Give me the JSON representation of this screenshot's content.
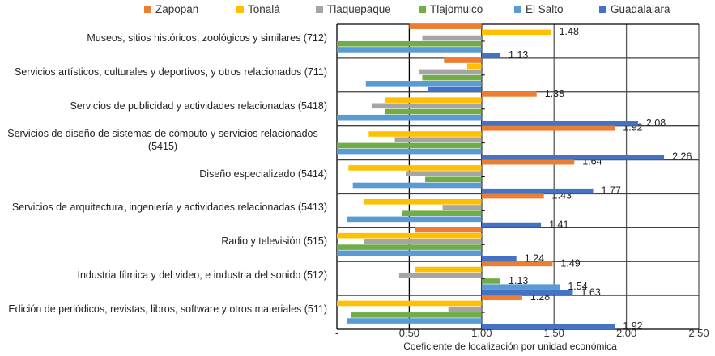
{
  "chart_data": {
    "type": "bar",
    "orientation": "horizontal",
    "title": "",
    "xlabel": "Coeficiente de localización por unidad económica",
    "ylabel": "",
    "baseline": 1.0,
    "xlim": [
      0,
      2.5
    ],
    "xticks": [
      0,
      0.5,
      1.0,
      1.5,
      2.0,
      2.5
    ],
    "xtick_labels": [
      "-",
      "0.50",
      "1.00",
      "1.50",
      "2.00",
      "2.50"
    ],
    "grid": true,
    "legend_position": "top",
    "categories": [
      "Museos, sitios históricos, zoológicos y similares (712)",
      "Servicios artísticos, culturales y deportivos, y otros relacionados (711)",
      "Servicios de publicidad y actividades relacionadas (5418)",
      "Servicios de diseño de sistemas de cómputo y servicios relacionados (5415)",
      "Diseño especializado (5414)",
      "Servicios de arquitectura, ingeniería y actividades relacionadas (5413)",
      "Radio y televisión (515)",
      "Industria fílmica y del video, e industria del sonido (512)",
      "Edición de periódicos, revistas, libros, software y otros materiales (511)"
    ],
    "category_display": [
      [
        "Museos, sitios históricos, zoológicos y similares (712)"
      ],
      [
        "Servicios artísticos, culturales y deportivos, y otros relacionados (711)"
      ],
      [
        "Servicios de publicidad y actividades relacionadas (5418)"
      ],
      [
        "Servicios de diseño de sistemas de cómputo y servicios relacionados",
        "(5415)"
      ],
      [
        "Diseño especializado (5414)"
      ],
      [
        "Servicios de arquitectura, ingeniería y actividades relacionadas (5413)"
      ],
      [
        "Radio y televisión (515)"
      ],
      [
        "Industria fílmica y del video, e industria del sonido (512)"
      ],
      [
        "Edición de periódicos, revistas, libros, software y otros materiales (511)"
      ]
    ],
    "series": [
      {
        "name": "Zapopan",
        "color": "#ED7D31",
        "values": [
          0.5,
          0.74,
          1.38,
          1.92,
          1.64,
          1.43,
          0.54,
          1.49,
          1.28
        ],
        "labels": [
          null,
          null,
          "1.38",
          "1.92",
          "1.64",
          "1.43",
          null,
          "1.49",
          "1.28"
        ]
      },
      {
        "name": "Tonalá",
        "color": "#FFC000",
        "values": [
          1.48,
          0.9,
          0.33,
          0.22,
          0.08,
          0.19,
          0.0,
          0.54,
          0.0
        ],
        "labels": [
          "1.48",
          null,
          null,
          null,
          null,
          null,
          null,
          null,
          null
        ]
      },
      {
        "name": "Tlaquepaque",
        "color": "#A5A5A5",
        "values": [
          0.59,
          0.57,
          0.24,
          0.4,
          0.48,
          0.73,
          0.19,
          0.43,
          0.77
        ],
        "labels": [
          null,
          null,
          null,
          null,
          null,
          null,
          null,
          null,
          null
        ]
      },
      {
        "name": "Tlajomulco",
        "color": "#70AD47",
        "values": [
          0.0,
          0.59,
          0.33,
          0.0,
          0.61,
          0.45,
          0.0,
          1.13,
          0.1
        ],
        "labels": [
          null,
          null,
          null,
          null,
          null,
          null,
          null,
          "1.13",
          null
        ]
      },
      {
        "name": "El Salto",
        "color": "#5B9BD5",
        "values": [
          0.0,
          0.2,
          0.0,
          0.0,
          0.11,
          0.07,
          0.0,
          1.54,
          0.07
        ],
        "labels": [
          null,
          null,
          null,
          null,
          null,
          null,
          null,
          "1.54",
          null
        ]
      },
      {
        "name": "Guadalajara",
        "color": "#4472C4",
        "values": [
          1.13,
          0.63,
          2.08,
          2.26,
          1.77,
          1.41,
          1.24,
          1.63,
          1.92
        ],
        "labels": [
          "1.13",
          null,
          "2.08",
          "2.26",
          "1.77",
          "1.41",
          "1.24",
          "1.63",
          "1.92"
        ]
      }
    ]
  }
}
